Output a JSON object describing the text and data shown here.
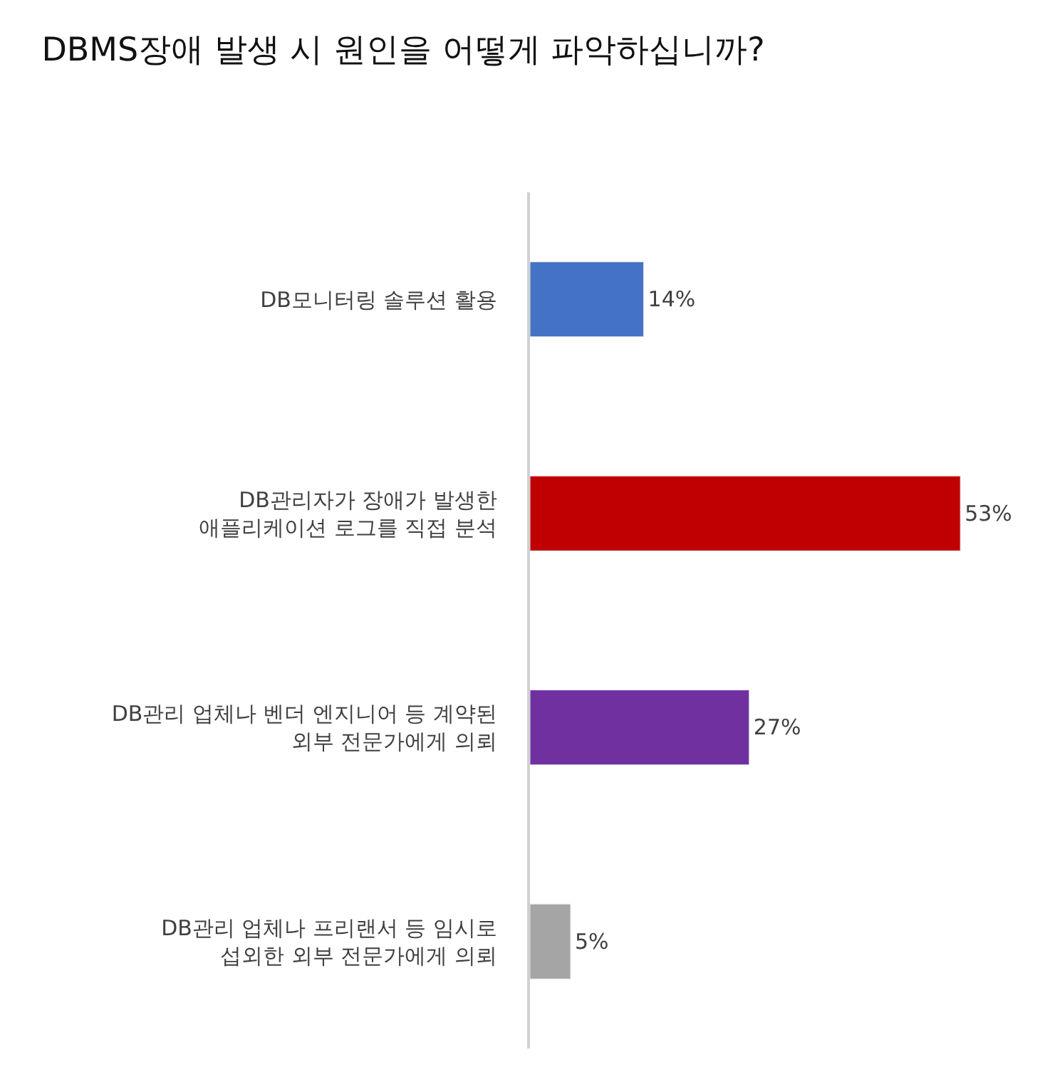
{
  "chart_data": {
    "type": "bar",
    "orientation": "horizontal",
    "title": "DBMS장애 발생 시 원인을 어떻게 파악하십니까?",
    "categories": [
      "DB모니터링 솔루션 활용",
      "DB관리자가 장애가 발생한\n애플리케이션 로그를 직접 분석",
      "DB관리 업체나 벤더 엔지니어 등 계약된\n외부 전문가에게 의뢰",
      "DB관리 업체나 프리랜서 등 임시로\n섭외한 외부 전문가에게 의뢰"
    ],
    "values": [
      14,
      53,
      27,
      5
    ],
    "colors": [
      "#4472c4",
      "#c00000",
      "#7030a0",
      "#a5a5a5"
    ],
    "value_labels": [
      "14%",
      "53%",
      "27%",
      "5%"
    ],
    "tick_labels": "y",
    "legend": false
  }
}
